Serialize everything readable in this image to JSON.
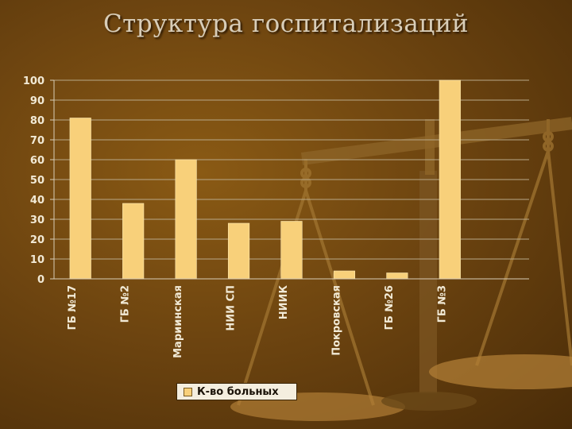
{
  "title": "Структура госпитализаций",
  "colors": {
    "bar": "#f8d07a",
    "bar_edge": "#fbe7b0",
    "axis": "#d8cdb8",
    "grid": "#b8a888"
  },
  "chart_data": {
    "type": "bar",
    "categories": [
      "ГБ №17",
      "ГБ №2",
      "Мариинская",
      "НИИ СП",
      "НИИК",
      "Покровская",
      "ГБ №26",
      "ГБ №3"
    ],
    "series": [
      {
        "name": "К-во больных",
        "values": [
          81,
          38,
          60,
          28,
          29,
          4,
          3,
          100
        ]
      }
    ],
    "ylim": [
      0,
      100
    ],
    "yticks": [
      "0",
      "10",
      "20",
      "30",
      "40",
      "50",
      "60",
      "70",
      "80",
      "90",
      "100"
    ],
    "grid": true,
    "legend": "bottom"
  }
}
